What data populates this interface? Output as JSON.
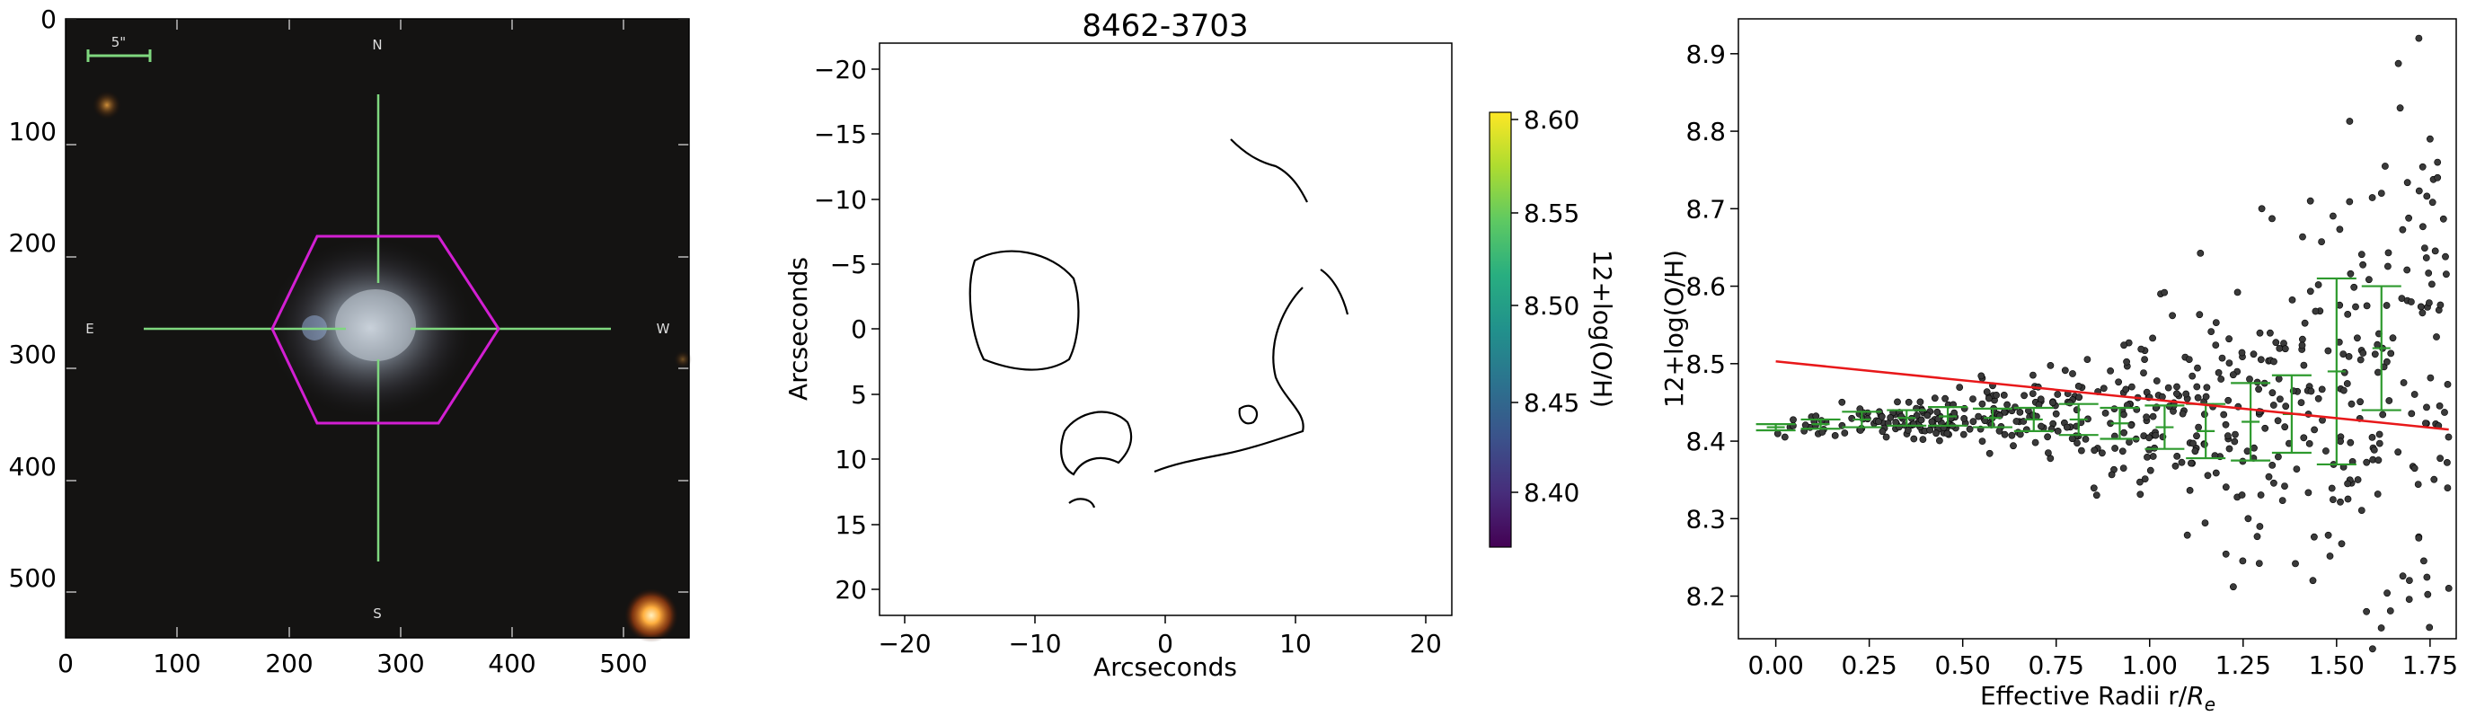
{
  "figure": {
    "panels": [
      {
        "kind": "image",
        "xticks": [
          "0",
          "100",
          "200",
          "300",
          "400",
          "500"
        ],
        "yticks": [
          "0",
          "100",
          "200",
          "300",
          "400",
          "500"
        ],
        "compass": {
          "n": "N",
          "s": "S",
          "e": "E",
          "w": "W"
        },
        "scale_bar_label": "5\"",
        "colors": {
          "hexagon": "#d21fd2",
          "crosshair": "#7fd77f",
          "scalebar": "#7fd77f"
        }
      },
      {
        "kind": "map",
        "title": "8462-3703",
        "xlabel": "Arcseconds",
        "ylabel": "Arcseconds",
        "xticks": [
          "−20",
          "−10",
          "0",
          "10",
          "20"
        ],
        "yticks": [
          "−20",
          "−15",
          "−10",
          "−5",
          "0",
          "5",
          "10",
          "15",
          "20"
        ],
        "colorbar": {
          "label": "12+log(O/H)",
          "ticks": [
            "8.40",
            "8.45",
            "8.50",
            "8.55",
            "8.60"
          ],
          "range": [
            8.365,
            8.605
          ],
          "colormap": "viridis"
        }
      },
      {
        "kind": "scatter",
        "xlabel": "Effective Radii r/",
        "xlabel_sym": "R",
        "xlabel_sub": "e",
        "ylabel": "12+log(O/H)",
        "xticks": [
          "0.00",
          "0.25",
          "0.50",
          "0.75",
          "1.00",
          "1.25",
          "1.50",
          "1.75"
        ],
        "yticks": [
          "8.2",
          "8.3",
          "8.4",
          "8.5",
          "8.6",
          "8.7",
          "8.8",
          "8.9"
        ],
        "colors": {
          "points": "#333333",
          "fit": "#e8181a",
          "errorbars": "#2e9a2e"
        }
      }
    ]
  },
  "chart_data": [
    {
      "type": "heatmap",
      "title": "8462-3703",
      "xlabel": "Arcseconds",
      "ylabel": "Arcseconds",
      "xlim": [
        -22,
        22
      ],
      "ylim": [
        22,
        -22
      ],
      "colorbar_label": "12+log(O/H)",
      "colorbar_range": [
        8.365,
        8.605
      ],
      "contour_levels": [
        8.4,
        8.5,
        8.6
      ]
    },
    {
      "type": "scatter",
      "xlabel": "Effective Radii r/Re",
      "ylabel": "12+log(O/H)",
      "xlim": [
        -0.1,
        1.82
      ],
      "ylim": [
        8.145,
        8.945
      ],
      "fit_line": {
        "x": [
          0.0,
          1.8
        ],
        "y": [
          8.503,
          8.415
        ]
      },
      "binned": {
        "x": [
          0.0,
          0.12,
          0.23,
          0.35,
          0.46,
          0.58,
          0.69,
          0.81,
          0.92,
          1.04,
          1.15,
          1.27,
          1.38,
          1.5,
          1.62
        ],
        "y": [
          8.418,
          8.422,
          8.428,
          8.43,
          8.432,
          8.43,
          8.428,
          8.428,
          8.423,
          8.418,
          8.413,
          8.425,
          8.435,
          8.49,
          8.52
        ],
        "yerr": [
          0.004,
          0.006,
          0.01,
          0.01,
          0.012,
          0.012,
          0.015,
          0.02,
          0.02,
          0.028,
          0.035,
          0.05,
          0.05,
          0.12,
          0.08
        ]
      },
      "outliers": {
        "x": [
          1.72,
          1.67,
          1.75,
          1.77,
          1.77,
          1.8,
          1.58,
          1.62,
          1.3,
          1.43
        ],
        "y": [
          8.92,
          8.83,
          8.79,
          8.76,
          8.74,
          8.21,
          8.18,
          8.72,
          8.7,
          8.71
        ]
      }
    }
  ]
}
